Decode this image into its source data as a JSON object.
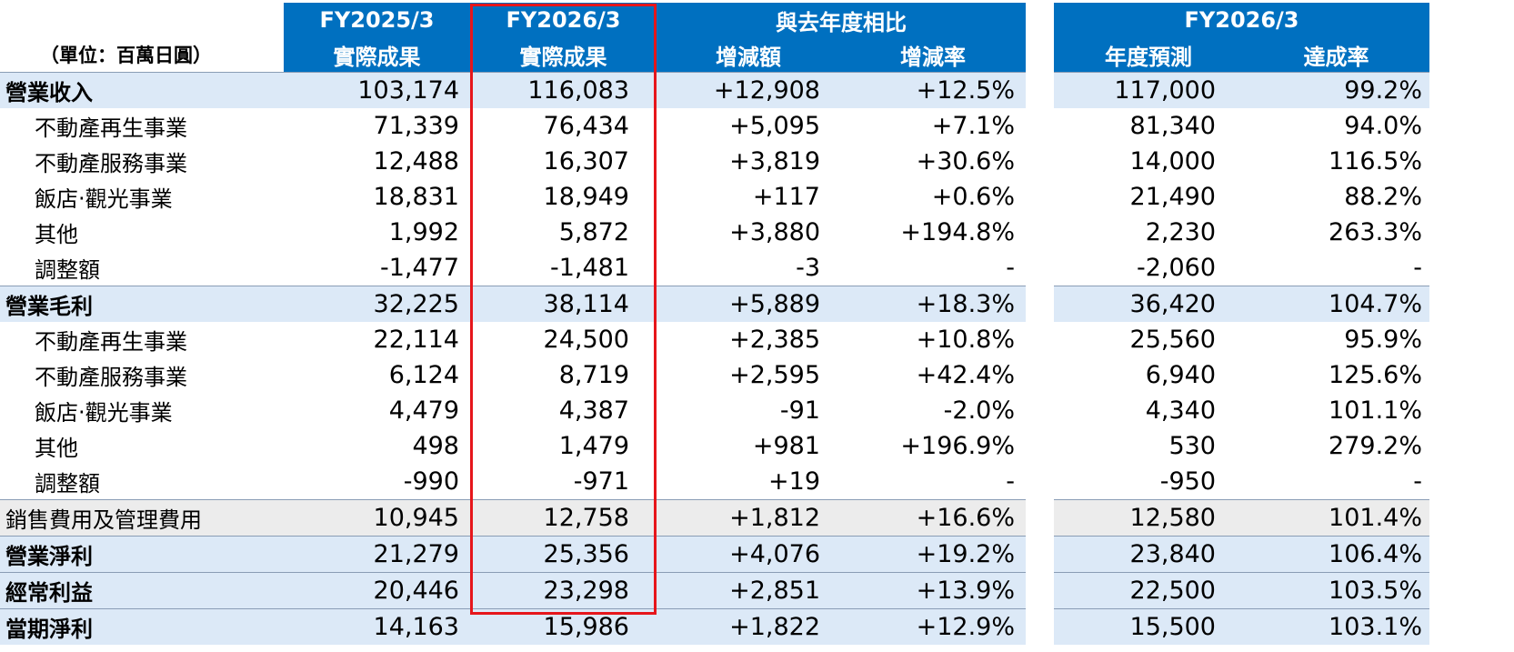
{
  "header": {
    "unit": "（單位：百萬日圓）",
    "col_fy2025": "FY2025/3",
    "col_fy2025_sub": "實際成果",
    "col_fy2026": "FY2026/3",
    "col_fy2026_sub": "實際成果",
    "col_compare": "與去年度相比",
    "col_diff": "增減額",
    "col_rate": "增減率",
    "col_forecast_group": "FY2026/3",
    "col_forecast": "年度預測",
    "col_achieve": "達成率"
  },
  "rows": [
    {
      "label": "營業收入",
      "act25": "103,174",
      "act26": "116,083",
      "diff": "+12,908",
      "rate": "+12.5%",
      "fc": "117,000",
      "ach": "99.2%"
    },
    {
      "label": "不動產再生事業",
      "act25": "71,339",
      "act26": "76,434",
      "diff": "+5,095",
      "rate": "+7.1%",
      "fc": "81,340",
      "ach": "94.0%"
    },
    {
      "label": "不動產服務事業",
      "act25": "12,488",
      "act26": "16,307",
      "diff": "+3,819",
      "rate": "+30.6%",
      "fc": "14,000",
      "ach": "116.5%"
    },
    {
      "label": "飯店‧觀光事業",
      "act25": "18,831",
      "act26": "18,949",
      "diff": "+117",
      "rate": "+0.6%",
      "fc": "21,490",
      "ach": "88.2%"
    },
    {
      "label": "其他",
      "act25": "1,992",
      "act26": "5,872",
      "diff": "+3,880",
      "rate": "+194.8%",
      "fc": "2,230",
      "ach": "263.3%"
    },
    {
      "label": "調整額",
      "act25": "-1,477",
      "act26": "-1,481",
      "diff": "-3",
      "rate": "-",
      "fc": "-2,060",
      "ach": "-"
    },
    {
      "label": "營業毛利",
      "act25": "32,225",
      "act26": "38,114",
      "diff": "+5,889",
      "rate": "+18.3%",
      "fc": "36,420",
      "ach": "104.7%"
    },
    {
      "label": "不動產再生事業",
      "act25": "22,114",
      "act26": "24,500",
      "diff": "+2,385",
      "rate": "+10.8%",
      "fc": "25,560",
      "ach": "95.9%"
    },
    {
      "label": "不動產服務事業",
      "act25": "6,124",
      "act26": "8,719",
      "diff": "+2,595",
      "rate": "+42.4%",
      "fc": "6,940",
      "ach": "125.6%"
    },
    {
      "label": "飯店‧觀光事業",
      "act25": "4,479",
      "act26": "4,387",
      "diff": "-91",
      "rate": "-2.0%",
      "fc": "4,340",
      "ach": "101.1%"
    },
    {
      "label": "其他",
      "act25": "498",
      "act26": "1,479",
      "diff": "+981",
      "rate": "+196.9%",
      "fc": "530",
      "ach": "279.2%"
    },
    {
      "label": "調整額",
      "act25": "-990",
      "act26": "-971",
      "diff": "+19",
      "rate": "-",
      "fc": "-950",
      "ach": "-"
    },
    {
      "label": "銷售費用及管理費用",
      "act25": "10,945",
      "act26": "12,758",
      "diff": "+1,812",
      "rate": "+16.6%",
      "fc": "12,580",
      "ach": "101.4%"
    },
    {
      "label": "營業淨利",
      "act25": "21,279",
      "act26": "25,356",
      "diff": "+4,076",
      "rate": "+19.2%",
      "fc": "23,840",
      "ach": "106.4%"
    },
    {
      "label": "經常利益",
      "act25": "20,446",
      "act26": "23,298",
      "diff": "+2,851",
      "rate": "+13.9%",
      "fc": "22,500",
      "ach": "103.5%"
    },
    {
      "label": "當期淨利",
      "act25": "14,163",
      "act26": "15,986",
      "diff": "+1,822",
      "rate": "+12.9%",
      "fc": "15,500",
      "ach": "103.1%"
    }
  ],
  "colors": {
    "header_blue": "#0070c0",
    "main_row": "#dce9f7",
    "gray_row": "#ececec",
    "highlight_red": "#e6161b"
  }
}
